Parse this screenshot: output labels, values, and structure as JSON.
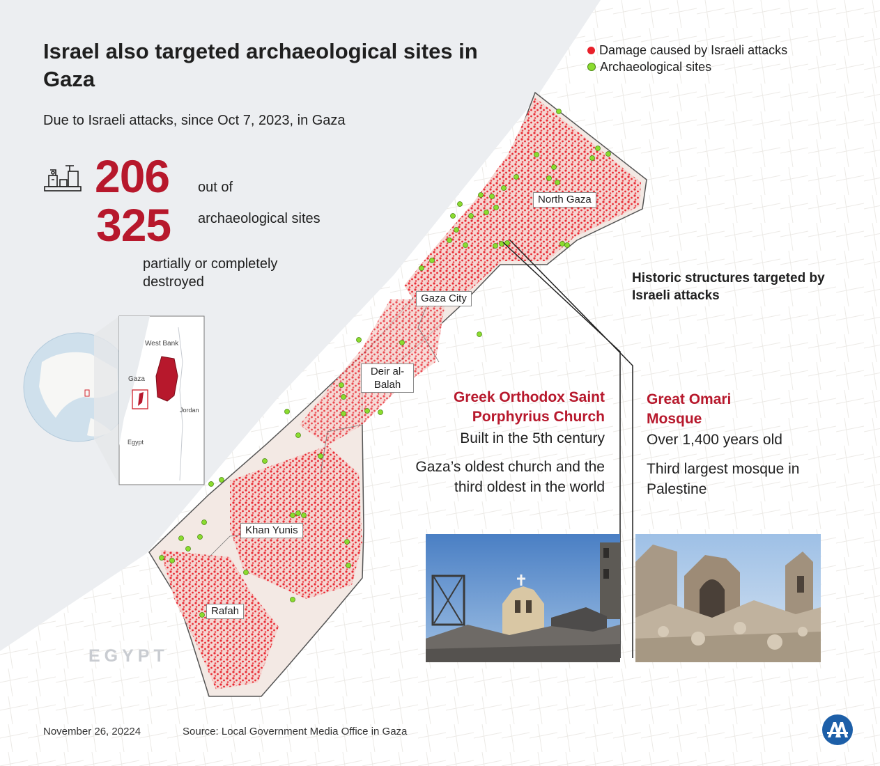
{
  "title": "Israel also targeted archaeological sites in Gaza",
  "intro": "Due to Israeli attacks, since Oct 7, 2023, in Gaza",
  "stats": {
    "affected": "206",
    "out_of_label": "out of",
    "total": "325",
    "sites_label": "archaeological sites",
    "destroyed_label": "partially or completely destroyed"
  },
  "legend": [
    {
      "label": "Damage caused by Israeli attacks",
      "color": "#e8202a"
    },
    {
      "label": "Archaeological sites",
      "color": "#8bdc2f"
    }
  ],
  "inset_map": {
    "labels": {
      "west_bank": "West Bank",
      "gaza": "Gaza",
      "jordan": "Jordan",
      "egypt": "Egypt"
    }
  },
  "map_labels": {
    "north_gaza": "North Gaza",
    "gaza_city": "Gaza City",
    "deir_al_balah": "Deir al-Balah",
    "khan_yunis": "Khan Yunis",
    "rafah": "Rafah",
    "egypt": "EGYPT"
  },
  "historic_heading": "Historic structures targeted by Israeli attacks",
  "sites": {
    "church": {
      "name": "Greek Orthodox Saint Porphyrius Church",
      "built": "Built in the 5th century",
      "note": "Gaza’s oldest church and the third oldest in the world"
    },
    "mosque": {
      "name": "Great Omari Mosque",
      "age": "Over 1,400 years old",
      "note": "Third largest mosque in Palestine"
    }
  },
  "footer": {
    "date": "November 26, 20224",
    "source": "Source: Local Government Media Office in Gaza"
  },
  "colors": {
    "accent": "#b7182c",
    "damage": "#e8202a",
    "site": "#8bdc2f",
    "sea": "#eceef1"
  },
  "icons": {
    "sites_icon": "archaeological-ruins-icon",
    "logo": "aa-logo"
  }
}
